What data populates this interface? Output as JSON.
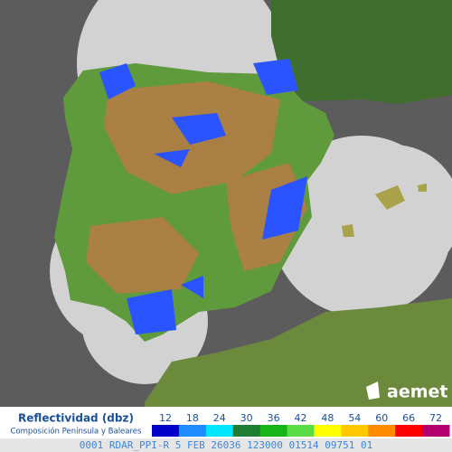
{
  "legend": {
    "title": "Reflectividad (dbz)",
    "subtitle": "Composición Península y Baleares",
    "scale": [
      {
        "value": 12,
        "color": "#0000c8"
      },
      {
        "value": 18,
        "color": "#1e8cff"
      },
      {
        "value": 24,
        "color": "#00e6ff"
      },
      {
        "value": 30,
        "color": "#1e7d32"
      },
      {
        "value": 36,
        "color": "#19b419"
      },
      {
        "value": 42,
        "color": "#5adc46"
      },
      {
        "value": 48,
        "color": "#ffff00"
      },
      {
        "value": 54,
        "color": "#ffc800"
      },
      {
        "value": 60,
        "color": "#ff8c00"
      },
      {
        "value": 66,
        "color": "#ff0000"
      },
      {
        "value": 72,
        "color": "#b4006e"
      }
    ]
  },
  "logo": "aemet",
  "status_line": "0001 RDAR_PPI-R  5 FEB 26036 123000 01514 09751 01"
}
